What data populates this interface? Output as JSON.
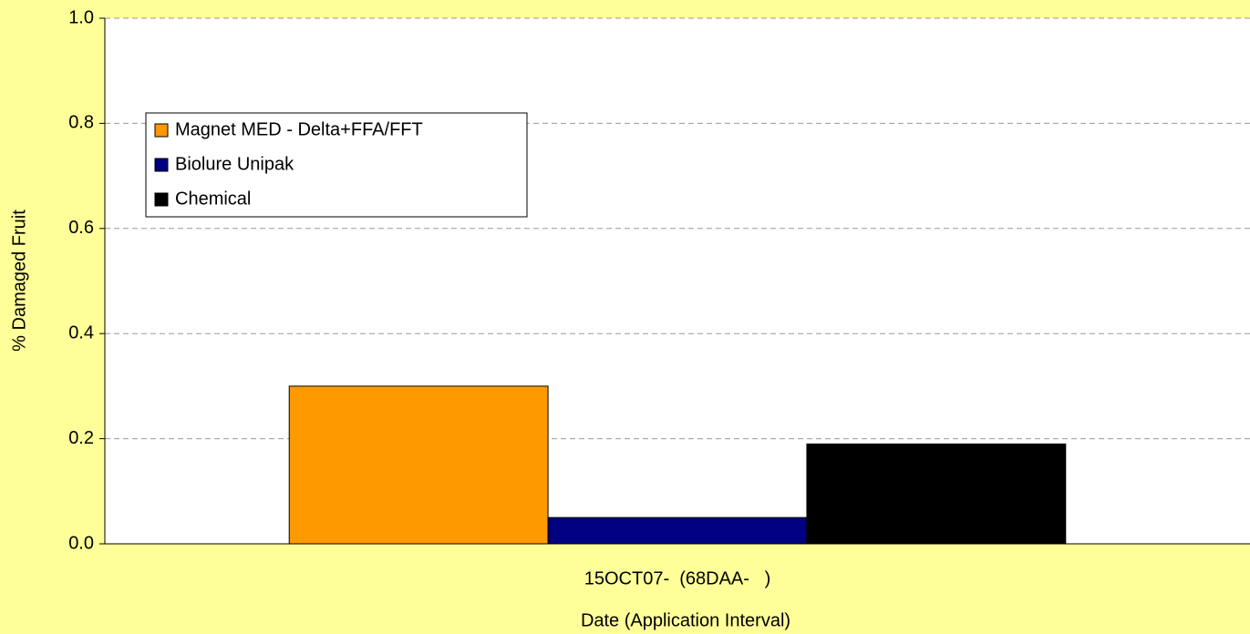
{
  "chart_data": {
    "type": "bar",
    "categories": [
      "15OCT07-  (68DAA-   )"
    ],
    "series": [
      {
        "name": "Magnet MED - Delta+FFA/FFT",
        "color": "#ff9900",
        "values": [
          0.3
        ]
      },
      {
        "name": "Biolure Unipak",
        "color": "#000080",
        "values": [
          0.05
        ]
      },
      {
        "name": "Chemical",
        "color": "#000000",
        "values": [
          0.19
        ]
      }
    ],
    "ylabel": "% Damaged Fruit",
    "xlabel": "Date (Application Interval)",
    "ylim": [
      0,
      1
    ],
    "yticks": [
      {
        "value": 0,
        "label": "0.0"
      },
      0.2,
      0.4,
      0.6,
      0.8,
      {
        "value": 1,
        "label": "1.0"
      }
    ],
    "grid": true,
    "legend": "upper left"
  }
}
